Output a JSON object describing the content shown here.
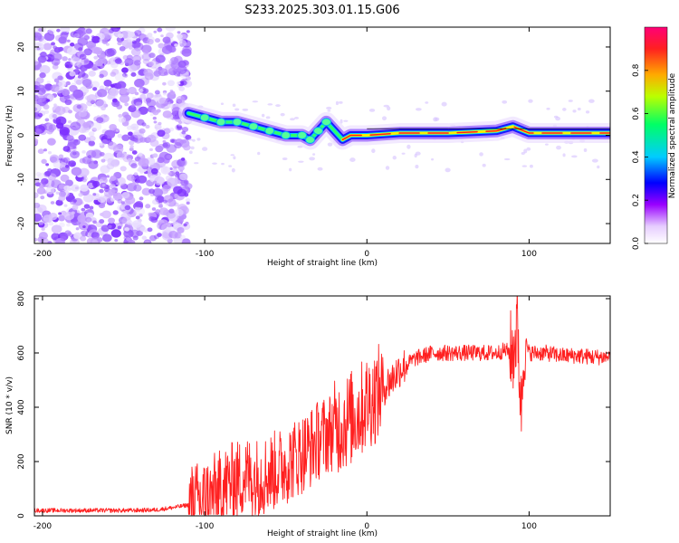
{
  "title": "S233.2025.303.01.15.G06",
  "colors": {
    "snr_line": "#ff2020",
    "frame": "#000000"
  },
  "chart_data": [
    {
      "type": "heatmap",
      "name": "spectrogram",
      "xlabel": "Height of straight line (km)",
      "ylabel": "Frequency (Hz)",
      "xlim": [
        -205,
        150
      ],
      "ylim": [
        -24.5,
        24.5
      ],
      "xticks": [
        -200,
        -100,
        0,
        100
      ],
      "yticks": [
        -20,
        -10,
        0,
        10,
        20
      ],
      "colorbar": {
        "label": "Normalized spectral amplitude",
        "range": [
          0,
          1
        ],
        "ticks": [
          0.0,
          0.2,
          0.4,
          0.6,
          0.8
        ]
      },
      "ridge": [
        {
          "x": -110,
          "y": 5
        },
        {
          "x": -100,
          "y": 4
        },
        {
          "x": -90,
          "y": 3
        },
        {
          "x": -80,
          "y": 3
        },
        {
          "x": -70,
          "y": 2
        },
        {
          "x": -60,
          "y": 1
        },
        {
          "x": -50,
          "y": 0
        },
        {
          "x": -40,
          "y": 0
        },
        {
          "x": -35,
          "y": -1
        },
        {
          "x": -30,
          "y": 1
        },
        {
          "x": -25,
          "y": 3
        },
        {
          "x": -20,
          "y": 1
        },
        {
          "x": -15,
          "y": -1
        },
        {
          "x": -10,
          "y": 0
        },
        {
          "x": 0,
          "y": 0
        },
        {
          "x": 20,
          "y": 0.5
        },
        {
          "x": 50,
          "y": 0.5
        },
        {
          "x": 80,
          "y": 1
        },
        {
          "x": 90,
          "y": 2
        },
        {
          "x": 100,
          "y": 0.5
        },
        {
          "x": 150,
          "y": 0.5
        }
      ]
    },
    {
      "type": "line",
      "name": "snr",
      "xlabel": "Height of straight line (km)",
      "ylabel": "SNR (10 * v/v)",
      "xlim": [
        -205,
        150
      ],
      "ylim": [
        0,
        810
      ],
      "xticks": [
        -200,
        -100,
        0,
        100
      ],
      "yticks": [
        0,
        200,
        400,
        600,
        800
      ],
      "series": [
        {
          "name": "SNR",
          "x": [
            -205,
            -190,
            -175,
            -160,
            -145,
            -130,
            -120,
            -110,
            -100,
            -95,
            -90,
            -85,
            -80,
            -75,
            -70,
            -65,
            -60,
            -55,
            -50,
            -45,
            -40,
            -35,
            -30,
            -25,
            -20,
            -15,
            -10,
            -5,
            0,
            5,
            10,
            15,
            20,
            25,
            30,
            35,
            40,
            50,
            60,
            70,
            80,
            85,
            90,
            93,
            95,
            97,
            100,
            110,
            120,
            130,
            140,
            150
          ],
          "y": [
            20,
            20,
            20,
            20,
            20,
            22,
            30,
            40,
            60,
            80,
            100,
            120,
            130,
            150,
            140,
            145,
            160,
            170,
            190,
            210,
            230,
            250,
            280,
            300,
            320,
            340,
            360,
            380,
            420,
            440,
            470,
            500,
            540,
            560,
            580,
            590,
            600,
            600,
            600,
            600,
            600,
            610,
            600,
            700,
            380,
            650,
            600,
            600,
            590,
            590,
            585,
            585
          ]
        }
      ]
    }
  ]
}
